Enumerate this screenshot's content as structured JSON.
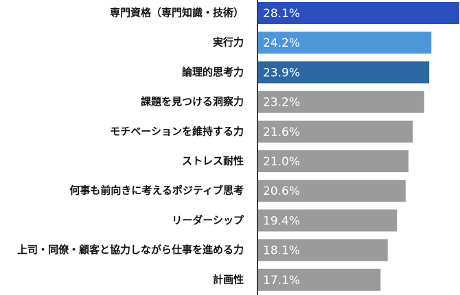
{
  "chart_data": {
    "type": "bar",
    "orientation": "horizontal",
    "categories": [
      "専門資格（専門知識・技術）",
      "実行力",
      "論理的思考力",
      "課題を見つける洞察力",
      "モチベーションを維持する力",
      "ストレス耐性",
      "何事も前向きに考えるポジティブ思考",
      "リーダーシップ",
      "上司・同僚・顧客と協力しながら仕事を進める力",
      "計画性"
    ],
    "values": [
      28.1,
      24.2,
      23.9,
      23.2,
      21.6,
      21.0,
      20.6,
      19.4,
      18.1,
      17.1
    ],
    "value_labels": [
      "28.1%",
      "24.2%",
      "23.9%",
      "23.2%",
      "21.6%",
      "21.0%",
      "20.6%",
      "19.4%",
      "18.1%",
      "17.1%"
    ],
    "colors": [
      "#2a4ebd",
      "#4b97d9",
      "#2d68a3",
      "#9b9b9b",
      "#9b9b9b",
      "#9b9b9b",
      "#9b9b9b",
      "#9b9b9b",
      "#9b9b9b",
      "#9b9b9b"
    ],
    "xlim": [
      0,
      28.2
    ]
  }
}
